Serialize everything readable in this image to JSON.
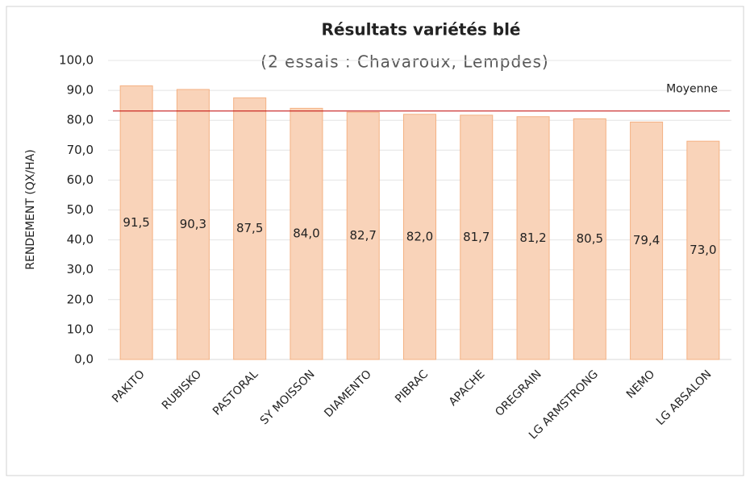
{
  "chart_data": {
    "type": "bar",
    "title": "Résultats variétés blé",
    "subtitle": "(2 essais : Chavaroux, Lempdes)",
    "y_axis_label": "RENDEMENT (QX/HA)",
    "categories": [
      "PAKITO",
      "RUBISKO",
      "PASTORAL",
      "SY MOISSON",
      "DIAMENTO",
      "PIBRAC",
      "APACHE",
      "OREGRAIN",
      "LG ARMSTRONG",
      "NEMO",
      "LG ABSALON"
    ],
    "values": [
      91.5,
      90.3,
      87.5,
      84.0,
      82.7,
      82.0,
      81.7,
      81.2,
      80.5,
      79.4,
      73.0
    ],
    "value_labels": [
      "91,5",
      "90,3",
      "87,5",
      "84,0",
      "82,7",
      "82,0",
      "81,7",
      "81,2",
      "80,5",
      "79,4",
      "73,0"
    ],
    "color": "#f9d3b9",
    "edge_color": "#f4b183",
    "ylim": [
      0,
      100
    ],
    "yticks": [
      {
        "value": 0,
        "label": "0,0"
      },
      {
        "value": 10,
        "label": "10,0"
      },
      {
        "value": 20,
        "label": "20,0"
      },
      {
        "value": 30,
        "label": "30,0"
      },
      {
        "value": 40,
        "label": "40,0"
      },
      {
        "value": 50,
        "label": "50,0"
      },
      {
        "value": 60,
        "label": "60,0"
      },
      {
        "value": 70,
        "label": "70,0"
      },
      {
        "value": 80,
        "label": "80,0"
      },
      {
        "value": 90,
        "label": "90,0"
      },
      {
        "value": 100,
        "label": "100,0"
      }
    ],
    "grid": true,
    "reference_line": {
      "label": "Moyenne",
      "value": 83.1,
      "color": "#c00000"
    }
  }
}
